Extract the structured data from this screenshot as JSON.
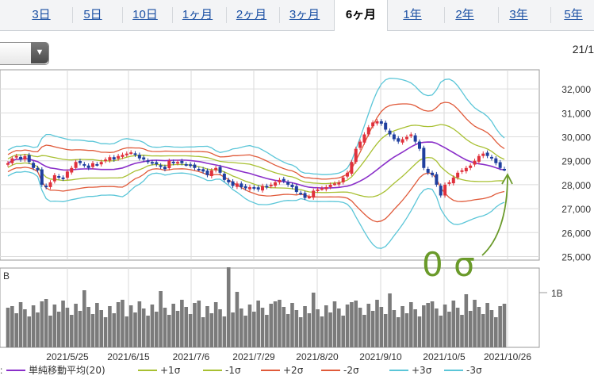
{
  "tabs": [
    {
      "label": "3日",
      "active": false
    },
    {
      "label": "5日",
      "active": false
    },
    {
      "label": "10日",
      "active": false
    },
    {
      "label": "1ヶ月",
      "active": false
    },
    {
      "label": "2ヶ月",
      "active": false
    },
    {
      "label": "3ヶ月",
      "active": false
    },
    {
      "label": "6ヶ月",
      "active": true
    },
    {
      "label": "1年",
      "active": false
    },
    {
      "label": "2年",
      "active": false
    },
    {
      "label": "3年",
      "active": false
    },
    {
      "label": "5年",
      "active": false
    }
  ],
  "header": {
    "date_partial": "21/1"
  },
  "annotation": {
    "text": "0 σ",
    "color": "#6a9a2a"
  },
  "chart_data": {
    "type": "line",
    "price_axis": {
      "ticks": [
        "32,000",
        "31,000",
        "30,000",
        "29,000",
        "28,000",
        "27,000",
        "26,000",
        "25,000"
      ],
      "ylim": [
        24850,
        32800
      ]
    },
    "volume_axis": {
      "label": "B",
      "tick": "1B"
    },
    "x_ticks": [
      "2021/5/25",
      "2021/6/15",
      "2021/7/6",
      "2021/7/29",
      "2021/8/20",
      "2021/9/10",
      "2021/10/5",
      "2021/10/26"
    ],
    "grid": true,
    "closes": [
      28900,
      29100,
      29200,
      29050,
      29200,
      28950,
      28700,
      28600,
      28000,
      27900,
      28100,
      28400,
      28300,
      28250,
      28550,
      28700,
      28950,
      28900,
      28800,
      28700,
      28900,
      28850,
      28950,
      29050,
      29150,
      29050,
      29200,
      29250,
      29300,
      29350,
      29250,
      29100,
      29050,
      28950,
      28900,
      28850,
      28750,
      28650,
      29000,
      28900,
      28950,
      28900,
      28850,
      28800,
      28700,
      28650,
      28550,
      28400,
      28600,
      28700,
      28500,
      28200,
      28100,
      27950,
      28050,
      27900,
      27850,
      27900,
      27850,
      27800,
      27950,
      27900,
      28000,
      28100,
      28200,
      28150,
      28000,
      27900,
      27700,
      27650,
      27450,
      27500,
      27750,
      27800,
      27850,
      27900,
      28000,
      28050,
      28100,
      28300,
      28500,
      28950,
      29500,
      29800,
      30100,
      30400,
      30600,
      30650,
      30550,
      30300,
      30100,
      29900,
      29800,
      29900,
      30000,
      30100,
      29800,
      29500,
      28700,
      28500,
      28400,
      28000,
      27550,
      28000,
      28100,
      28300,
      28500,
      28600,
      28700,
      28800,
      29000,
      29200,
      29300,
      29200,
      29100,
      28900,
      28700,
      28650
    ],
    "series": [
      {
        "name": "単純移動平均(20)",
        "color": "#8a2fc9"
      },
      {
        "name": "+1σ",
        "color": "#a8c032"
      },
      {
        "name": "-1σ",
        "color": "#a8c032"
      },
      {
        "name": "+2σ",
        "color": "#e05a3a"
      },
      {
        "name": "-2σ",
        "color": "#e05a3a"
      },
      {
        "name": "+3σ",
        "color": "#5bc6d8"
      },
      {
        "name": "-3σ",
        "color": "#5bc6d8"
      }
    ],
    "up_color": "#e0313c",
    "down_color": "#1f3f9f",
    "volume_color": "#7b7b7b"
  }
}
